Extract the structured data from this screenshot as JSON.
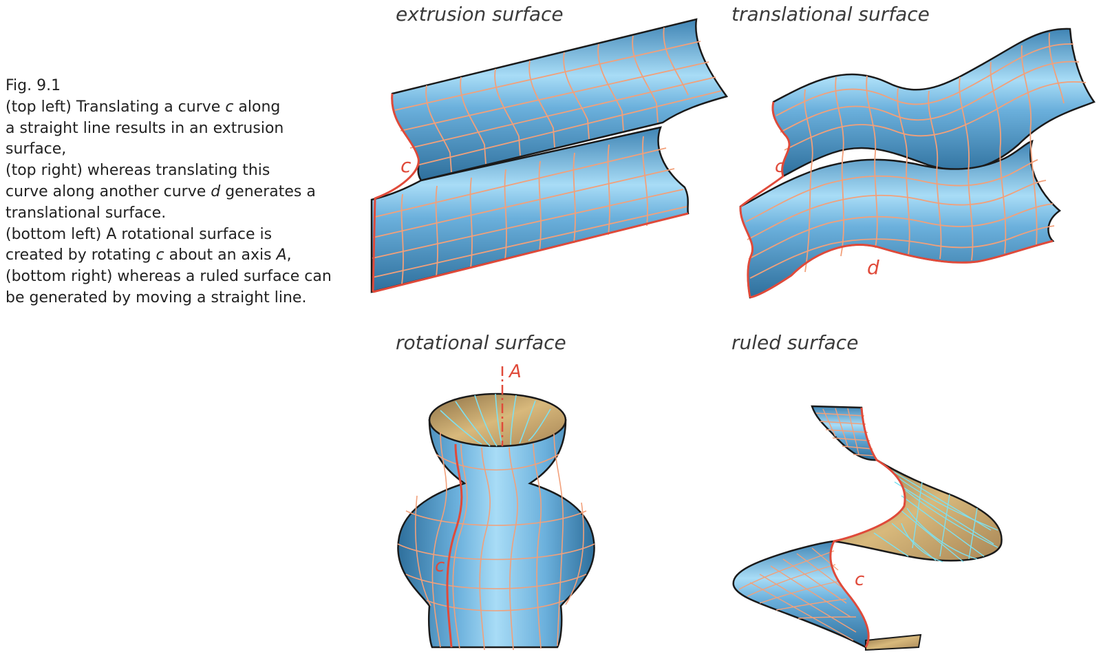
{
  "caption": {
    "fig_label": "Fig. 9.1",
    "l1_a": "(top left) Translating a curve ",
    "l1_var": "c",
    "l1_b": " along",
    "l2": "a straight line results in an extrusion",
    "l3": "surface,",
    "l4": "(top right) whereas translating this",
    "l5_a": "curve along another curve ",
    "l5_var": "d",
    "l5_b": " generates a",
    "l6": "translational surface.",
    "l7": "(bottom left) A rotational surface is",
    "l8_a": "created by rotating ",
    "l8_var1": "c",
    "l8_b": " about an axis ",
    "l8_var2": "A",
    "l8_c": ",",
    "l9": "(bottom right) whereas a ruled surface can",
    "l10": "be generated by moving a straight line."
  },
  "panels": {
    "extrusion": {
      "title": "extrusion surface",
      "curve_label": "c"
    },
    "translational": {
      "title": "translational surface",
      "curve_label": "c",
      "path_label": "d"
    },
    "rotational": {
      "title": "rotational surface",
      "axis_label": "A",
      "curve_label": "c"
    },
    "ruled": {
      "title": "ruled surface",
      "curve_label": "c"
    }
  },
  "colors": {
    "surface_blue": "#6bb0dc",
    "surface_highlight": "#a8dcf6",
    "surface_shadow": "#2e6f9c",
    "interior_tan": "#c9a66e",
    "grid_orange": "#f2a07a",
    "grid_cyan": "#7fe0ee",
    "curve_red": "#e04a3a",
    "outline": "#1a1a1a"
  }
}
